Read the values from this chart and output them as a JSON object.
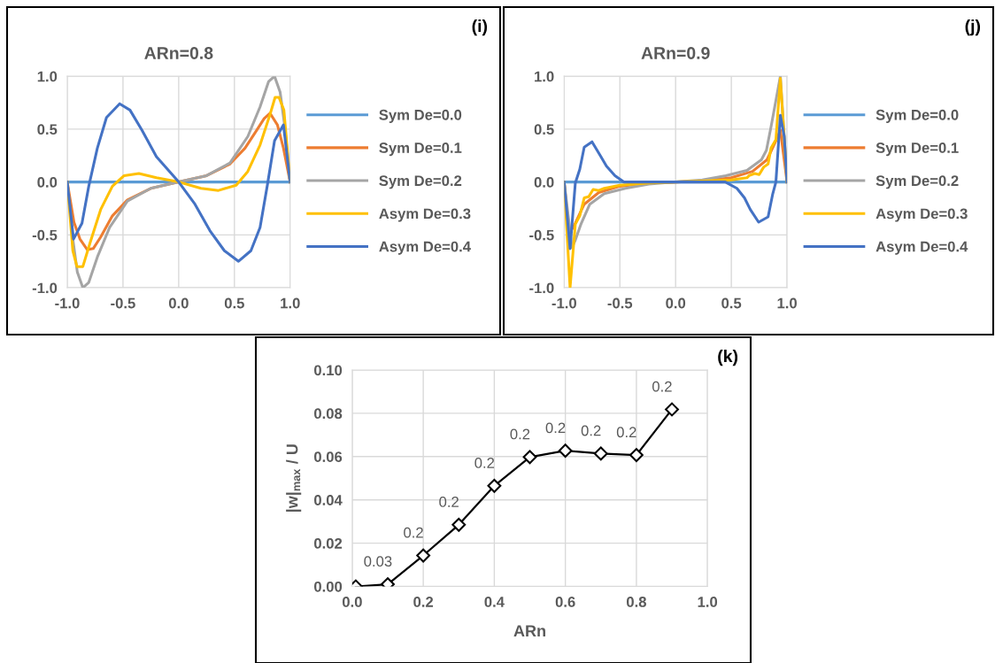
{
  "chart_data": [
    {
      "type": "line",
      "title": "ARn=0.8",
      "annotations": [
        "(i)"
      ],
      "legend": "right",
      "grid": true,
      "xlim": [
        -1,
        1
      ],
      "xticks": [
        {
          "value": -1,
          "label": "-1.0"
        },
        {
          "value": -0.5,
          "label": "-0.5"
        },
        {
          "value": 0,
          "label": "0.0"
        },
        {
          "value": 0.5,
          "label": "0.5"
        },
        {
          "value": 1,
          "label": "1.0"
        }
      ],
      "ylim": [
        -1,
        1
      ],
      "yticks": [
        {
          "value": -1,
          "label": "-1.0"
        },
        {
          "value": -0.5,
          "label": "-0.5"
        },
        {
          "value": 0,
          "label": "0.0"
        },
        {
          "value": 0.5,
          "label": "0.5"
        },
        {
          "value": 1,
          "label": "1.0"
        }
      ],
      "series": [
        {
          "name": "Sym De=0.0",
          "color": "#5b9bd5",
          "x": [
            -1,
            -0.5,
            0,
            0.5,
            1
          ],
          "values": [
            0,
            0,
            0,
            0,
            0
          ]
        },
        {
          "name": "Sym De=0.1",
          "color": "#ed7d31",
          "x": [
            -1,
            -0.94,
            -0.886,
            -0.82,
            -0.767,
            -0.7,
            -0.595,
            -0.46,
            -0.25,
            0,
            0.25,
            0.46,
            0.595,
            0.7,
            0.767,
            0.82,
            0.886,
            0.94,
            1
          ],
          "values": [
            0,
            -0.38,
            -0.54,
            -0.64,
            -0.63,
            -0.52,
            -0.32,
            -0.17,
            -0.06,
            0,
            0.06,
            0.17,
            0.32,
            0.49,
            0.6,
            0.65,
            0.54,
            0.32,
            0
          ]
        },
        {
          "name": "Sym De=0.2",
          "color": "#a5a5a5",
          "x": [
            -1,
            -0.95,
            -0.91,
            -0.86,
            -0.807,
            -0.73,
            -0.62,
            -0.46,
            -0.25,
            0,
            0.25,
            0.46,
            0.62,
            0.73,
            0.807,
            0.86,
            0.91,
            0.95,
            1
          ],
          "values": [
            0,
            -0.54,
            -0.85,
            -1.0,
            -0.95,
            -0.71,
            -0.43,
            -0.18,
            -0.06,
            0,
            0.06,
            0.18,
            0.43,
            0.71,
            0.95,
            1.0,
            0.85,
            0.54,
            0
          ]
        },
        {
          "name": "Asym De=0.3",
          "color": "#ffc000",
          "x": [
            -1,
            -0.95,
            -0.913,
            -0.86,
            -0.794,
            -0.7,
            -0.595,
            -0.49,
            -0.357,
            -0.2,
            0,
            0.2,
            0.357,
            0.516,
            0.62,
            0.73,
            0.82,
            0.865,
            0.9,
            0.944,
            1
          ],
          "values": [
            0,
            -0.65,
            -0.8,
            -0.8,
            -0.57,
            -0.26,
            -0.04,
            0.06,
            0.08,
            0.04,
            0,
            -0.06,
            -0.08,
            -0.03,
            0.1,
            0.35,
            0.64,
            0.8,
            0.8,
            0.68,
            0
          ]
        },
        {
          "name": "Asym De=0.4",
          "color": "#4472c4",
          "x": [
            -1,
            -0.944,
            -0.868,
            -0.807,
            -0.73,
            -0.648,
            -0.53,
            -0.437,
            -0.33,
            -0.2,
            0,
            0.146,
            0.28,
            0.41,
            0.537,
            0.648,
            0.73,
            0.794,
            0.86,
            0.94,
            1
          ],
          "values": [
            0,
            -0.54,
            -0.39,
            -0.04,
            0.32,
            0.61,
            0.74,
            0.68,
            0.49,
            0.24,
            0,
            -0.21,
            -0.46,
            -0.65,
            -0.75,
            -0.65,
            -0.43,
            -0.04,
            0.39,
            0.54,
            0
          ]
        }
      ]
    },
    {
      "type": "line",
      "title": "ARn=0.9",
      "annotations": [
        "(j)"
      ],
      "legend": "right",
      "grid": true,
      "xlim": [
        -1,
        1
      ],
      "xticks": [
        {
          "value": -1,
          "label": "-1.0"
        },
        {
          "value": -0.5,
          "label": "-0.5"
        },
        {
          "value": 0,
          "label": "0.0"
        },
        {
          "value": 0.5,
          "label": "0.5"
        },
        {
          "value": 1,
          "label": "1.0"
        }
      ],
      "ylim": [
        -1,
        1
      ],
      "yticks": [
        {
          "value": -1,
          "label": "-1.0"
        },
        {
          "value": -0.5,
          "label": "-0.5"
        },
        {
          "value": 0,
          "label": "0.0"
        },
        {
          "value": 0.5,
          "label": "0.5"
        },
        {
          "value": 1,
          "label": "1.0"
        }
      ],
      "series": [
        {
          "name": "Sym De=0.0",
          "color": "#5b9bd5",
          "x": [
            -1,
            -0.5,
            0,
            0.5,
            1
          ],
          "values": [
            0,
            0,
            0,
            0,
            0
          ]
        },
        {
          "name": "Sym De=0.1",
          "color": "#ed7d31",
          "x": [
            -1,
            -0.955,
            -0.9,
            -0.82,
            -0.69,
            -0.5,
            -0.24,
            0,
            0.24,
            0.5,
            0.69,
            0.82,
            0.9,
            0.94,
            1
          ],
          "values": [
            0,
            -0.49,
            -0.39,
            -0.21,
            -0.1,
            -0.04,
            -0.01,
            0,
            0.01,
            0.04,
            0.1,
            0.21,
            0.39,
            0.49,
            0
          ]
        },
        {
          "name": "Sym De=0.2",
          "color": "#a5a5a5",
          "x": [
            -1,
            -0.93,
            -0.9,
            -0.85,
            -0.77,
            -0.64,
            -0.45,
            -0.24,
            0,
            0.24,
            0.45,
            0.64,
            0.77,
            0.815,
            0.856,
            0.94,
            1
          ],
          "values": [
            0,
            -0.62,
            -0.55,
            -0.4,
            -0.21,
            -0.11,
            -0.06,
            -0.02,
            0,
            0.02,
            0.06,
            0.11,
            0.21,
            0.3,
            0.52,
            1.0,
            0
          ]
        },
        {
          "name": "Asym De=0.3",
          "color": "#ffc000",
          "x": [
            -1,
            -0.947,
            -0.9,
            -0.86,
            -0.82,
            -0.78,
            -0.74,
            -0.69,
            -0.64,
            -0.5,
            -0.24,
            0,
            0.24,
            0.5,
            0.64,
            0.66,
            0.71,
            0.75,
            0.79,
            0.83,
            0.856,
            0.9,
            0.94,
            1
          ],
          "values": [
            0,
            -1.0,
            -0.4,
            -0.32,
            -0.15,
            -0.14,
            -0.07,
            -0.08,
            -0.06,
            -0.03,
            -0.01,
            0,
            0.01,
            0.02,
            0.04,
            0.06,
            0.08,
            0.07,
            0.14,
            0.17,
            0.32,
            0.4,
            0.98,
            0
          ]
        },
        {
          "name": "Asym De=0.4",
          "color": "#4472c4",
          "x": [
            -1,
            -0.947,
            -0.9,
            -0.86,
            -0.82,
            -0.75,
            -0.676,
            -0.62,
            -0.544,
            -0.465,
            0,
            0.446,
            0.55,
            0.618,
            0.67,
            0.745,
            0.83,
            0.87,
            0.9,
            0.94,
            0.975,
            1
          ],
          "values": [
            0,
            -0.63,
            -0.01,
            0.12,
            0.33,
            0.38,
            0.25,
            0.15,
            0.06,
            0,
            0,
            0,
            -0.06,
            -0.15,
            -0.26,
            -0.38,
            -0.33,
            -0.12,
            0,
            0.63,
            0.43,
            0
          ]
        }
      ]
    },
    {
      "type": "line",
      "xlabel": "ARn",
      "ylabel": "|w|$_{max}$ / U",
      "grid": true,
      "marker": "diamond",
      "annotations": [
        "(k)",
        {
          "text": "0.03",
          "x": 0.1,
          "y": 0.001
        },
        {
          "text": "0.2",
          "x": 0.2,
          "y": 0.0143
        },
        {
          "text": "0.2",
          "x": 0.3,
          "y": 0.0285
        },
        {
          "text": "0.2",
          "x": 0.4,
          "y": 0.0465
        },
        {
          "text": "0.2",
          "x": 0.5,
          "y": 0.0598
        },
        {
          "text": "0.2",
          "x": 0.6,
          "y": 0.0627
        },
        {
          "text": "0.2",
          "x": 0.7,
          "y": 0.0614
        },
        {
          "text": "0.2",
          "x": 0.8,
          "y": 0.0607
        },
        {
          "text": "0.2",
          "x": 0.9,
          "y": 0.0818
        }
      ],
      "xlim": [
        0,
        1
      ],
      "xticks": [
        {
          "value": 0,
          "label": "0.0"
        },
        {
          "value": 0.2,
          "label": "0.2"
        },
        {
          "value": 0.4,
          "label": "0.4"
        },
        {
          "value": 0.6,
          "label": "0.6"
        },
        {
          "value": 0.8,
          "label": "0.8"
        },
        {
          "value": 1,
          "label": "1.0"
        }
      ],
      "ylim": [
        0,
        0.1
      ],
      "yticks": [
        {
          "value": 0,
          "label": "0.00"
        },
        {
          "value": 0.02,
          "label": "0.02"
        },
        {
          "value": 0.04,
          "label": "0.04"
        },
        {
          "value": 0.06,
          "label": "0.06"
        },
        {
          "value": 0.08,
          "label": "0.08"
        },
        {
          "value": 0.1,
          "label": "0.10"
        }
      ],
      "series": [
        {
          "color": "#000000",
          "x": [
            0.01,
            0.1,
            0.2,
            0.3,
            0.4,
            0.5,
            0.6,
            0.7,
            0.8,
            0.9
          ],
          "values": [
            0,
            0.001,
            0.0143,
            0.0285,
            0.0465,
            0.0598,
            0.0627,
            0.0614,
            0.0607,
            0.0818
          ]
        }
      ]
    }
  ]
}
